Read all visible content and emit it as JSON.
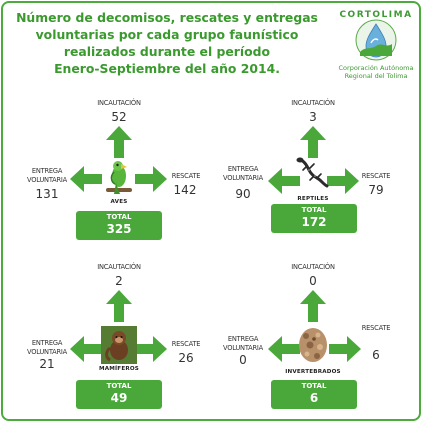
{
  "title": {
    "line1": "Número de decomisos, rescates y entregas",
    "line2": "voluntarias por cada grupo faunístico",
    "line3": "realizados durante el período",
    "line4": "Enero-Septiembre del año 2014."
  },
  "logo": {
    "name": "CORTOLIMA",
    "sub1": "Corporación Autónoma",
    "sub2": "Regional del Tolima"
  },
  "labels": {
    "incautacion": "INCAUTACIÓN",
    "entrega1": "ENTREGA",
    "entrega2": "VOLUNTARIA",
    "rescate": "RESCATE",
    "total": "TOTAL"
  },
  "groups": [
    {
      "name": "AVES",
      "incautacion": "52",
      "entrega": "131",
      "rescate": "142",
      "total": "325"
    },
    {
      "name": "REPTILES",
      "incautacion": "3",
      "entrega": "90",
      "rescate": "79",
      "total": "172"
    },
    {
      "name": "MAMÍFEROS",
      "incautacion": "2",
      "entrega": "21",
      "rescate": "26",
      "total": "49"
    },
    {
      "name": "INVERTEBRADOS",
      "incautacion": "0",
      "entrega": "0",
      "rescate": "6",
      "total": "6"
    }
  ],
  "colors": {
    "green": "#4aa83b",
    "title": "#3a9a2e",
    "frame": "#4daa3d"
  }
}
